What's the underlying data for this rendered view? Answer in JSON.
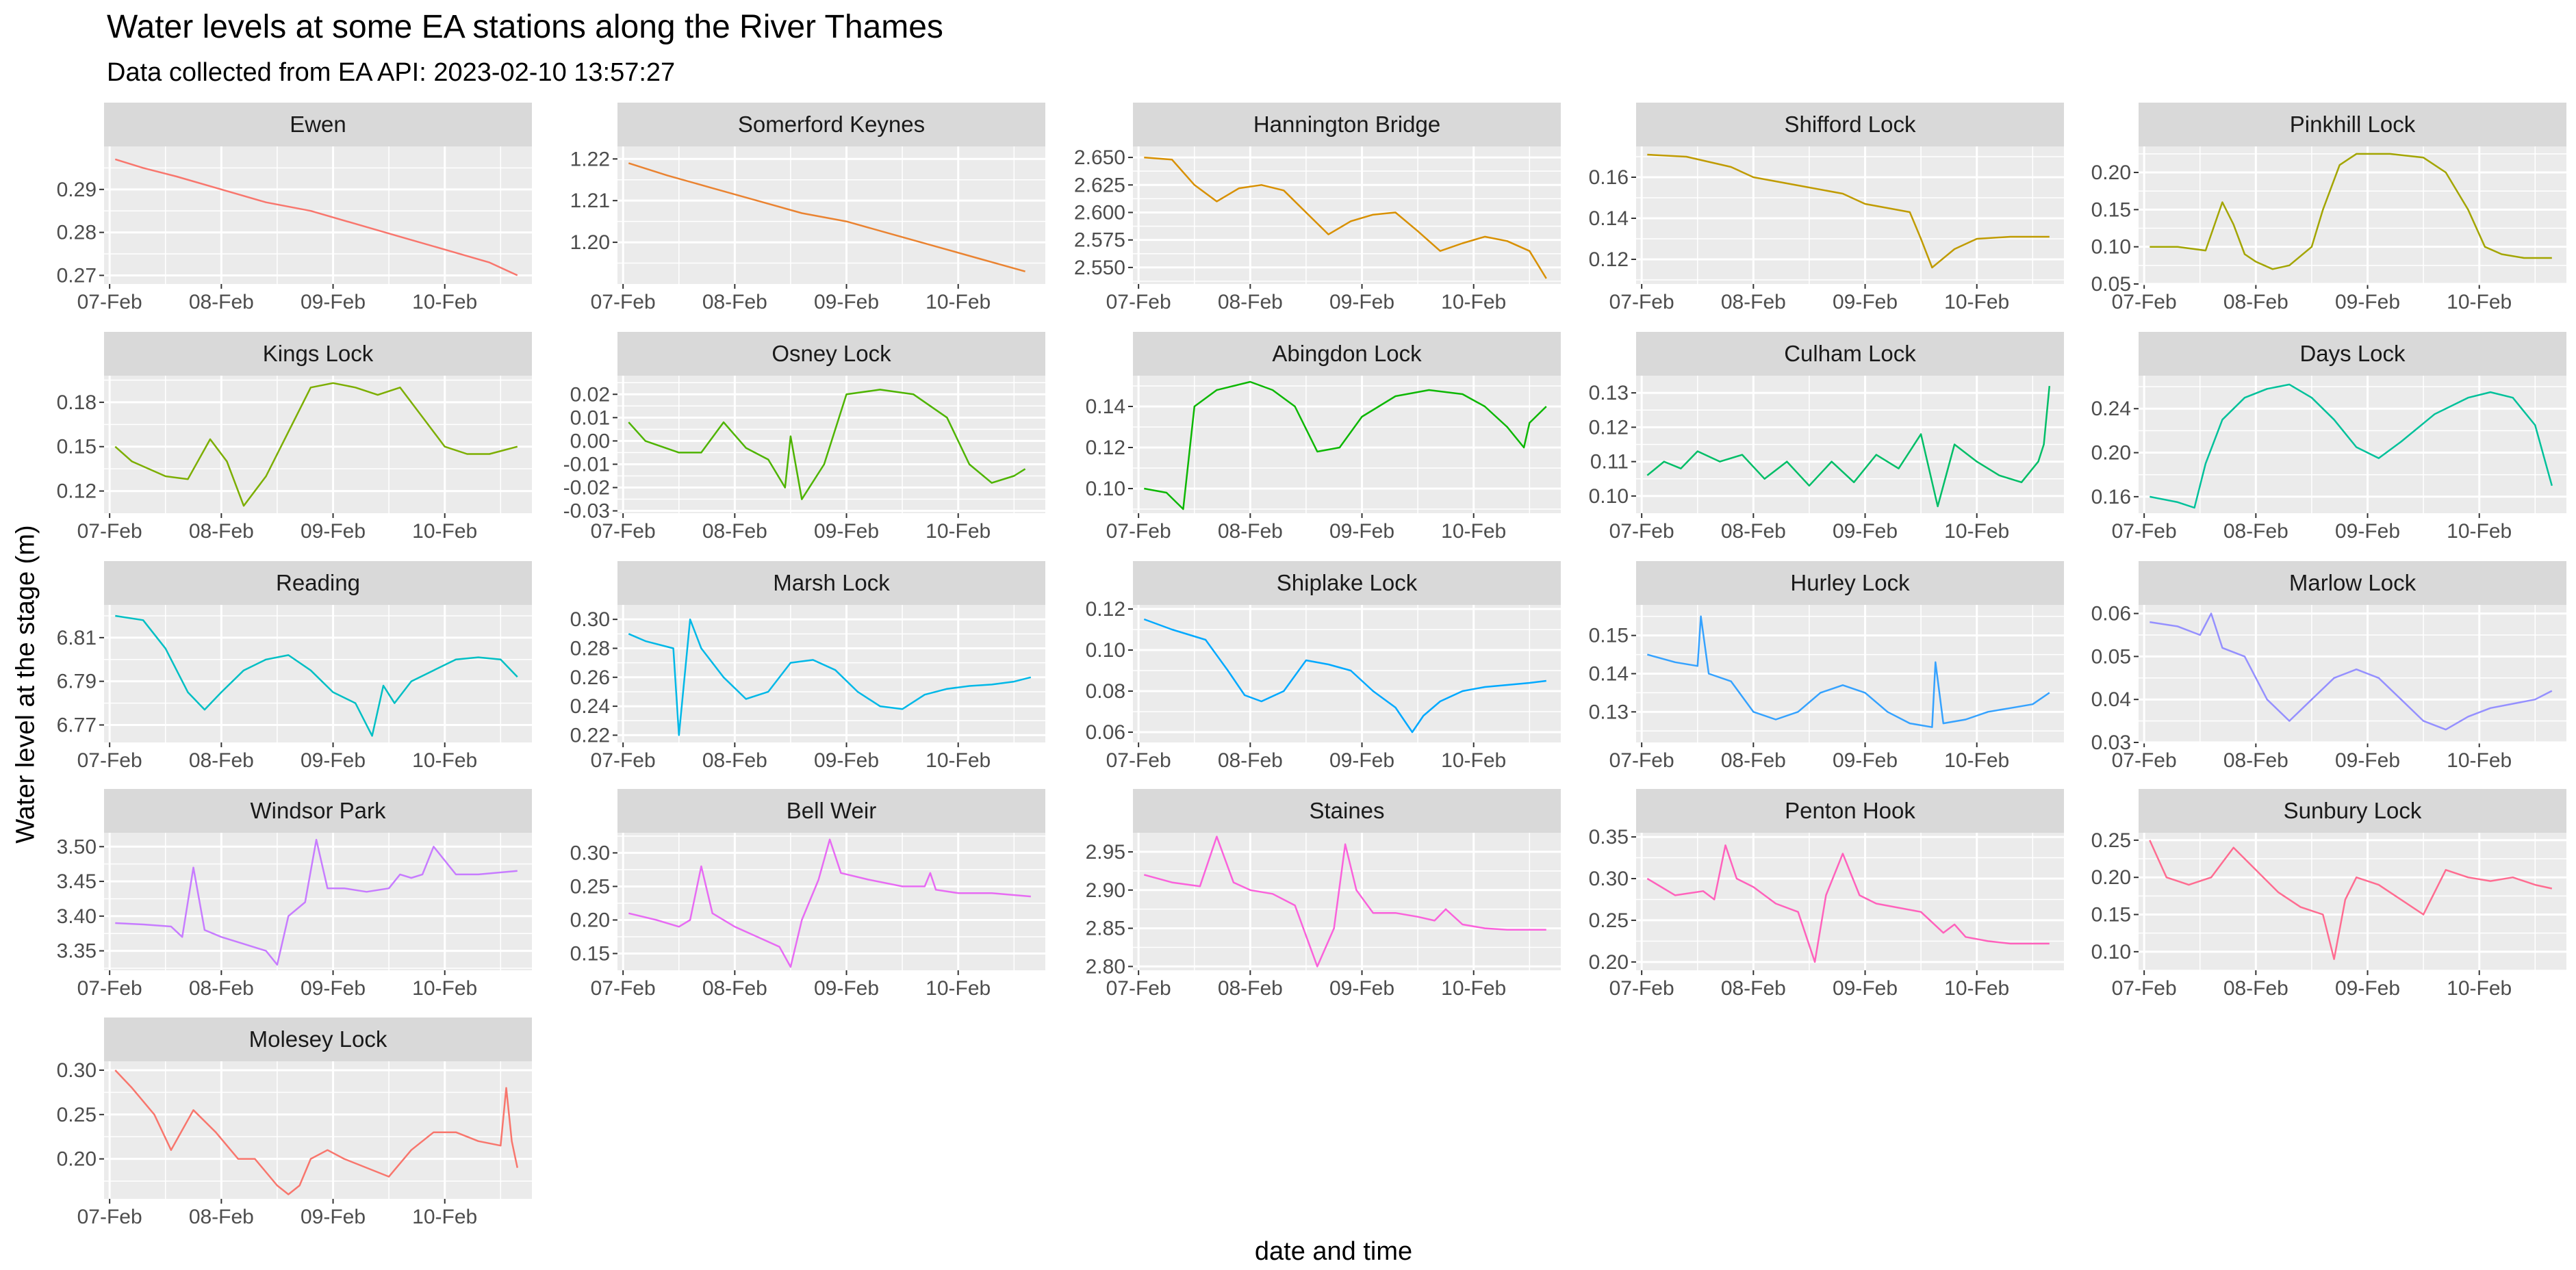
{
  "chart_data": {
    "type": "line",
    "title": "Water levels at some EA stations along the River Thames",
    "subtitle": "Data collected from EA API: 2023-02-10 13:57:27",
    "xlabel": "date and time",
    "ylabel": "Water level at the stage (m)",
    "x_ticks": [
      "07-Feb",
      "08-Feb",
      "09-Feb",
      "10-Feb"
    ],
    "x_range": [
      -0.05,
      3.78
    ],
    "grid": true,
    "legend": "none",
    "facets": [
      {
        "name": "Ewen",
        "color": "#F8766D",
        "ylim": [
          0.268,
          0.3
        ],
        "y_ticks": [
          "0.27",
          "0.28",
          "0.29"
        ],
        "x": [
          0.05,
          0.3,
          0.6,
          1.0,
          1.4,
          1.8,
          2.2,
          2.6,
          3.0,
          3.4,
          3.65
        ],
        "values": [
          0.297,
          0.295,
          0.293,
          0.29,
          0.287,
          0.285,
          0.282,
          0.279,
          0.276,
          0.273,
          0.27
        ]
      },
      {
        "name": "Somerford Keynes",
        "color": "#EA8331",
        "ylim": [
          1.19,
          1.223
        ],
        "y_ticks": [
          "1.20",
          "1.21",
          "1.22"
        ],
        "x": [
          0.05,
          0.4,
          0.8,
          1.2,
          1.6,
          2.0,
          2.4,
          2.8,
          3.2,
          3.6
        ],
        "values": [
          1.219,
          1.216,
          1.213,
          1.21,
          1.207,
          1.205,
          1.202,
          1.199,
          1.196,
          1.193
        ]
      },
      {
        "name": "Hannington Bridge",
        "color": "#D89000",
        "ylim": [
          2.535,
          2.66
        ],
        "y_ticks": [
          "2.550",
          "2.575",
          "2.600",
          "2.625",
          "2.650"
        ],
        "x": [
          0.05,
          0.3,
          0.5,
          0.7,
          0.9,
          1.1,
          1.3,
          1.5,
          1.7,
          1.9,
          2.1,
          2.3,
          2.5,
          2.7,
          2.9,
          3.1,
          3.3,
          3.5,
          3.65
        ],
        "values": [
          2.65,
          2.648,
          2.625,
          2.61,
          2.622,
          2.625,
          2.62,
          2.6,
          2.58,
          2.592,
          2.598,
          2.6,
          2.583,
          2.565,
          2.572,
          2.578,
          2.574,
          2.565,
          2.54
        ]
      },
      {
        "name": "Shifford Lock",
        "color": "#C09B00",
        "ylim": [
          0.108,
          0.175
        ],
        "y_ticks": [
          "0.12",
          "0.14",
          "0.16"
        ],
        "x": [
          0.05,
          0.4,
          0.8,
          1.0,
          1.4,
          1.8,
          2.0,
          2.2,
          2.4,
          2.5,
          2.6,
          2.8,
          3.0,
          3.3,
          3.65
        ],
        "values": [
          0.171,
          0.17,
          0.165,
          0.16,
          0.156,
          0.152,
          0.147,
          0.145,
          0.143,
          0.13,
          0.116,
          0.125,
          0.13,
          0.131,
          0.131
        ]
      },
      {
        "name": "Pinkhill Lock",
        "color": "#A3A500",
        "ylim": [
          0.05,
          0.235
        ],
        "y_ticks": [
          "0.05",
          "0.10",
          "0.15",
          "0.20"
        ],
        "x": [
          0.05,
          0.3,
          0.55,
          0.7,
          0.8,
          0.9,
          1.0,
          1.15,
          1.3,
          1.5,
          1.6,
          1.75,
          1.9,
          2.2,
          2.5,
          2.7,
          2.9,
          3.05,
          3.2,
          3.4,
          3.65
        ],
        "values": [
          0.1,
          0.1,
          0.095,
          0.16,
          0.13,
          0.09,
          0.08,
          0.07,
          0.075,
          0.1,
          0.15,
          0.21,
          0.225,
          0.225,
          0.22,
          0.2,
          0.15,
          0.1,
          0.09,
          0.085,
          0.085
        ]
      },
      {
        "name": "Kings Lock",
        "color": "#7CAE00",
        "ylim": [
          0.105,
          0.198
        ],
        "y_ticks": [
          "0.12",
          "0.15",
          "0.18"
        ],
        "x": [
          0.05,
          0.2,
          0.5,
          0.7,
          0.9,
          1.05,
          1.2,
          1.4,
          1.6,
          1.8,
          2.0,
          2.2,
          2.4,
          2.6,
          2.8,
          3.0,
          3.2,
          3.4,
          3.65
        ],
        "values": [
          0.15,
          0.14,
          0.13,
          0.128,
          0.155,
          0.14,
          0.11,
          0.13,
          0.16,
          0.19,
          0.193,
          0.19,
          0.185,
          0.19,
          0.17,
          0.15,
          0.145,
          0.145,
          0.15
        ]
      },
      {
        "name": "Osney Lock",
        "color": "#4EB400",
        "ylim": [
          -0.031,
          0.028
        ],
        "y_ticks": [
          "-0.03",
          "-0.02",
          "-0.01",
          "0.00",
          "0.01",
          "0.02"
        ],
        "x": [
          0.05,
          0.2,
          0.5,
          0.7,
          0.9,
          1.1,
          1.3,
          1.45,
          1.5,
          1.6,
          1.8,
          2.0,
          2.3,
          2.6,
          2.9,
          3.1,
          3.3,
          3.5,
          3.6
        ],
        "values": [
          0.008,
          0.0,
          -0.005,
          -0.005,
          0.008,
          -0.003,
          -0.008,
          -0.02,
          0.002,
          -0.025,
          -0.01,
          0.02,
          0.022,
          0.02,
          0.01,
          -0.01,
          -0.018,
          -0.015,
          -0.012
        ]
      },
      {
        "name": "Abingdon Lock",
        "color": "#0CB702",
        "ylim": [
          0.088,
          0.155
        ],
        "y_ticks": [
          "0.10",
          "0.12",
          "0.14"
        ],
        "x": [
          0.05,
          0.25,
          0.4,
          0.5,
          0.7,
          1.0,
          1.2,
          1.4,
          1.6,
          1.8,
          2.0,
          2.3,
          2.6,
          2.9,
          3.1,
          3.3,
          3.45,
          3.5,
          3.65
        ],
        "values": [
          0.1,
          0.098,
          0.09,
          0.14,
          0.148,
          0.152,
          0.148,
          0.14,
          0.118,
          0.12,
          0.135,
          0.145,
          0.148,
          0.146,
          0.14,
          0.13,
          0.12,
          0.132,
          0.14
        ]
      },
      {
        "name": "Culham Lock",
        "color": "#00BE67",
        "ylim": [
          0.095,
          0.135
        ],
        "y_ticks": [
          "0.10",
          "0.11",
          "0.12",
          "0.13"
        ],
        "x": [
          0.05,
          0.2,
          0.35,
          0.5,
          0.7,
          0.9,
          1.1,
          1.3,
          1.5,
          1.7,
          1.9,
          2.1,
          2.3,
          2.5,
          2.65,
          2.8,
          3.0,
          3.2,
          3.4,
          3.55,
          3.6,
          3.65
        ],
        "values": [
          0.106,
          0.11,
          0.108,
          0.113,
          0.11,
          0.112,
          0.105,
          0.11,
          0.103,
          0.11,
          0.104,
          0.112,
          0.108,
          0.118,
          0.097,
          0.115,
          0.11,
          0.106,
          0.104,
          0.11,
          0.115,
          0.132
        ]
      },
      {
        "name": "Days Lock",
        "color": "#00C19A",
        "ylim": [
          0.145,
          0.27
        ],
        "y_ticks": [
          "0.16",
          "0.20",
          "0.24"
        ],
        "x": [
          0.05,
          0.3,
          0.45,
          0.55,
          0.7,
          0.9,
          1.1,
          1.3,
          1.5,
          1.7,
          1.9,
          2.1,
          2.3,
          2.6,
          2.9,
          3.1,
          3.3,
          3.5,
          3.65
        ],
        "values": [
          0.16,
          0.155,
          0.15,
          0.19,
          0.23,
          0.25,
          0.258,
          0.262,
          0.25,
          0.23,
          0.205,
          0.195,
          0.21,
          0.235,
          0.25,
          0.255,
          0.25,
          0.225,
          0.17
        ]
      },
      {
        "name": "Reading",
        "color": "#00BFC4",
        "ylim": [
          6.762,
          6.825
        ],
        "y_ticks": [
          "6.77",
          "6.79",
          "6.81"
        ],
        "x": [
          0.05,
          0.3,
          0.5,
          0.7,
          0.85,
          1.0,
          1.2,
          1.4,
          1.6,
          1.8,
          2.0,
          2.2,
          2.35,
          2.45,
          2.55,
          2.7,
          2.9,
          3.1,
          3.3,
          3.5,
          3.65
        ],
        "values": [
          6.82,
          6.818,
          6.805,
          6.785,
          6.777,
          6.785,
          6.795,
          6.8,
          6.802,
          6.795,
          6.785,
          6.78,
          6.765,
          6.788,
          6.78,
          6.79,
          6.795,
          6.8,
          6.801,
          6.8,
          6.792
        ]
      },
      {
        "name": "Marsh Lock",
        "color": "#00B8E7",
        "ylim": [
          0.215,
          0.31
        ],
        "y_ticks": [
          "0.22",
          "0.24",
          "0.26",
          "0.28",
          "0.30"
        ],
        "x": [
          0.05,
          0.2,
          0.45,
          0.5,
          0.6,
          0.7,
          0.9,
          1.1,
          1.3,
          1.5,
          1.7,
          1.9,
          2.1,
          2.3,
          2.5,
          2.7,
          2.9,
          3.1,
          3.3,
          3.5,
          3.65
        ],
        "values": [
          0.29,
          0.285,
          0.28,
          0.22,
          0.3,
          0.28,
          0.26,
          0.245,
          0.25,
          0.27,
          0.272,
          0.265,
          0.25,
          0.24,
          0.238,
          0.248,
          0.252,
          0.254,
          0.255,
          0.257,
          0.26
        ]
      },
      {
        "name": "Shiplake Lock",
        "color": "#00A9FF",
        "ylim": [
          0.055,
          0.122
        ],
        "y_ticks": [
          "0.06",
          "0.08",
          "0.10",
          "0.12"
        ],
        "x": [
          0.05,
          0.3,
          0.6,
          0.8,
          0.95,
          1.1,
          1.3,
          1.5,
          1.7,
          1.9,
          2.1,
          2.3,
          2.45,
          2.55,
          2.7,
          2.9,
          3.1,
          3.3,
          3.5,
          3.65
        ],
        "values": [
          0.115,
          0.11,
          0.105,
          0.09,
          0.078,
          0.075,
          0.08,
          0.095,
          0.093,
          0.09,
          0.08,
          0.072,
          0.06,
          0.068,
          0.075,
          0.08,
          0.082,
          0.083,
          0.084,
          0.085
        ]
      },
      {
        "name": "Hurley Lock",
        "color": "#35A2FF",
        "ylim": [
          0.122,
          0.158
        ],
        "y_ticks": [
          "0.13",
          "0.14",
          "0.15"
        ],
        "x": [
          0.05,
          0.3,
          0.5,
          0.53,
          0.6,
          0.8,
          1.0,
          1.2,
          1.4,
          1.6,
          1.8,
          2.0,
          2.2,
          2.4,
          2.6,
          2.63,
          2.7,
          2.9,
          3.1,
          3.3,
          3.5,
          3.65
        ],
        "values": [
          0.145,
          0.143,
          0.142,
          0.155,
          0.14,
          0.138,
          0.13,
          0.128,
          0.13,
          0.135,
          0.137,
          0.135,
          0.13,
          0.127,
          0.126,
          0.143,
          0.127,
          0.128,
          0.13,
          0.131,
          0.132,
          0.135
        ]
      },
      {
        "name": "Marlow Lock",
        "color": "#9590FF",
        "ylim": [
          0.03,
          0.062
        ],
        "y_ticks": [
          "0.03",
          "0.04",
          "0.05",
          "0.06"
        ],
        "x": [
          0.05,
          0.3,
          0.5,
          0.6,
          0.7,
          0.9,
          1.1,
          1.3,
          1.5,
          1.7,
          1.9,
          2.1,
          2.3,
          2.5,
          2.7,
          2.9,
          3.1,
          3.3,
          3.5,
          3.65
        ],
        "values": [
          0.058,
          0.057,
          0.055,
          0.06,
          0.052,
          0.05,
          0.04,
          0.035,
          0.04,
          0.045,
          0.047,
          0.045,
          0.04,
          0.035,
          0.033,
          0.036,
          0.038,
          0.039,
          0.04,
          0.042
        ]
      },
      {
        "name": "Windsor Park",
        "color": "#C77CFF",
        "ylim": [
          3.322,
          3.52
        ],
        "y_ticks": [
          "3.35",
          "3.40",
          "3.45",
          "3.50"
        ],
        "x": [
          0.05,
          0.3,
          0.55,
          0.65,
          0.75,
          0.85,
          1.0,
          1.2,
          1.4,
          1.5,
          1.6,
          1.75,
          1.85,
          1.95,
          2.1,
          2.3,
          2.5,
          2.6,
          2.7,
          2.8,
          2.9,
          3.1,
          3.3,
          3.65
        ],
        "values": [
          3.39,
          3.388,
          3.385,
          3.37,
          3.47,
          3.38,
          3.37,
          3.36,
          3.35,
          3.33,
          3.4,
          3.42,
          3.51,
          3.44,
          3.44,
          3.435,
          3.44,
          3.46,
          3.455,
          3.46,
          3.5,
          3.46,
          3.46,
          3.465
        ]
      },
      {
        "name": "Bell Weir",
        "color": "#E76BF3",
        "ylim": [
          0.125,
          0.33
        ],
        "y_ticks": [
          "0.15",
          "0.20",
          "0.25",
          "0.30"
        ],
        "x": [
          0.05,
          0.3,
          0.5,
          0.6,
          0.7,
          0.8,
          1.0,
          1.2,
          1.4,
          1.5,
          1.6,
          1.75,
          1.85,
          1.95,
          2.2,
          2.5,
          2.7,
          2.75,
          2.8,
          3.0,
          3.3,
          3.65
        ],
        "values": [
          0.21,
          0.2,
          0.19,
          0.2,
          0.28,
          0.21,
          0.19,
          0.175,
          0.16,
          0.13,
          0.2,
          0.26,
          0.32,
          0.27,
          0.26,
          0.25,
          0.25,
          0.27,
          0.245,
          0.24,
          0.24,
          0.235
        ]
      },
      {
        "name": "Staines",
        "color": "#FA62DB",
        "ylim": [
          2.795,
          2.975
        ],
        "y_ticks": [
          "2.80",
          "2.85",
          "2.90",
          "2.95"
        ],
        "x": [
          0.05,
          0.3,
          0.55,
          0.7,
          0.85,
          1.0,
          1.2,
          1.4,
          1.6,
          1.75,
          1.85,
          1.95,
          2.1,
          2.3,
          2.5,
          2.65,
          2.75,
          2.9,
          3.1,
          3.3,
          3.65
        ],
        "values": [
          2.92,
          2.91,
          2.905,
          2.97,
          2.91,
          2.9,
          2.895,
          2.88,
          2.8,
          2.85,
          2.96,
          2.9,
          2.87,
          2.87,
          2.865,
          2.86,
          2.875,
          2.855,
          2.85,
          2.848,
          2.848
        ]
      },
      {
        "name": "Penton Hook",
        "color": "#FF62BC",
        "ylim": [
          0.19,
          0.355
        ],
        "y_ticks": [
          "0.20",
          "0.25",
          "0.30",
          "0.35"
        ],
        "x": [
          0.05,
          0.3,
          0.55,
          0.65,
          0.75,
          0.85,
          1.0,
          1.2,
          1.4,
          1.55,
          1.65,
          1.8,
          1.95,
          2.1,
          2.3,
          2.5,
          2.7,
          2.8,
          2.9,
          3.1,
          3.3,
          3.65
        ],
        "values": [
          0.3,
          0.28,
          0.285,
          0.275,
          0.34,
          0.3,
          0.29,
          0.27,
          0.26,
          0.2,
          0.28,
          0.33,
          0.28,
          0.27,
          0.265,
          0.26,
          0.235,
          0.245,
          0.23,
          0.225,
          0.222,
          0.222
        ]
      },
      {
        "name": "Sunbury  Lock",
        "color": "#FF6C91",
        "ylim": [
          0.075,
          0.26
        ],
        "y_ticks": [
          "0.10",
          "0.15",
          "0.20",
          "0.25"
        ],
        "x": [
          0.05,
          0.2,
          0.4,
          0.6,
          0.8,
          1.0,
          1.2,
          1.4,
          1.6,
          1.7,
          1.8,
          1.9,
          2.1,
          2.3,
          2.5,
          2.7,
          2.9,
          3.1,
          3.3,
          3.5,
          3.65
        ],
        "values": [
          0.25,
          0.2,
          0.19,
          0.2,
          0.24,
          0.21,
          0.18,
          0.16,
          0.15,
          0.09,
          0.17,
          0.2,
          0.19,
          0.17,
          0.15,
          0.21,
          0.2,
          0.195,
          0.2,
          0.19,
          0.185
        ]
      },
      {
        "name": "Molesey Lock",
        "color": "#F8766D",
        "ylim": [
          0.155,
          0.31
        ],
        "y_ticks": [
          "0.20",
          "0.25",
          "0.30"
        ],
        "x": [
          0.05,
          0.2,
          0.4,
          0.55,
          0.75,
          0.95,
          1.15,
          1.3,
          1.5,
          1.6,
          1.7,
          1.8,
          1.95,
          2.1,
          2.3,
          2.5,
          2.7,
          2.9,
          3.1,
          3.3,
          3.5,
          3.55,
          3.6,
          3.65
        ],
        "values": [
          0.3,
          0.28,
          0.25,
          0.21,
          0.255,
          0.23,
          0.2,
          0.2,
          0.17,
          0.16,
          0.17,
          0.2,
          0.21,
          0.2,
          0.19,
          0.18,
          0.21,
          0.23,
          0.23,
          0.22,
          0.215,
          0.28,
          0.22,
          0.19
        ]
      }
    ]
  }
}
